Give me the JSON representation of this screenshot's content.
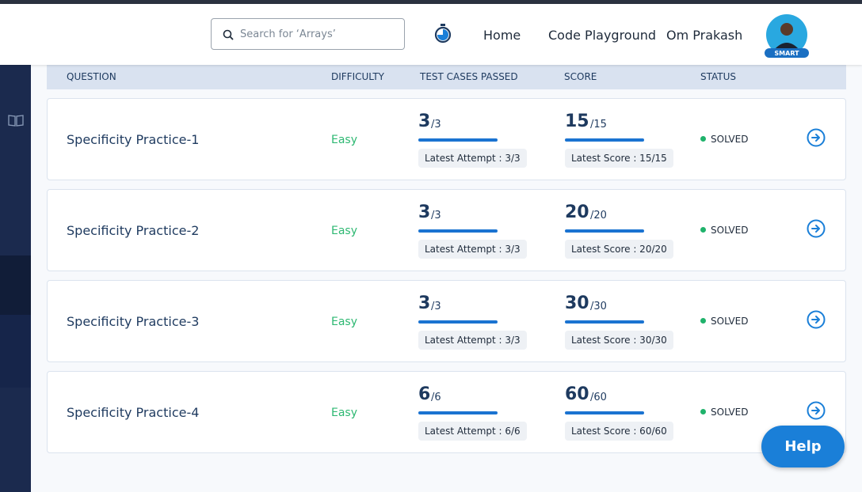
{
  "header": {
    "search_placeholder": "Search for ‘Arrays’",
    "nav": [
      "Home",
      "Code Playground"
    ],
    "user_name": "Om Prakash",
    "avatar_badge": "SMART"
  },
  "table": {
    "columns": [
      "QUESTION",
      "DIFFICULTY",
      "TEST CASES PASSED",
      "SCORE",
      "STATUS"
    ],
    "rows": [
      {
        "question": "Specificity Practice-1",
        "difficulty": "Easy",
        "tests_passed": "3",
        "tests_total": "/3",
        "attempt_label": "Latest Attempt : 3/3",
        "score": "15",
        "score_total": "/15",
        "score_label": "Latest Score : 15/15",
        "status": "SOLVED"
      },
      {
        "question": "Specificity Practice-2",
        "difficulty": "Easy",
        "tests_passed": "3",
        "tests_total": "/3",
        "attempt_label": "Latest Attempt : 3/3",
        "score": "20",
        "score_total": "/20",
        "score_label": "Latest Score : 20/20",
        "status": "SOLVED"
      },
      {
        "question": "Specificity Practice-3",
        "difficulty": "Easy",
        "tests_passed": "3",
        "tests_total": "/3",
        "attempt_label": "Latest Attempt : 3/3",
        "score": "30",
        "score_total": "/30",
        "score_label": "Latest Score : 30/30",
        "status": "SOLVED"
      },
      {
        "question": "Specificity Practice-4",
        "difficulty": "Easy",
        "tests_passed": "6",
        "tests_total": "/6",
        "attempt_label": "Latest Attempt : 6/6",
        "score": "60",
        "score_total": "/60",
        "score_label": "Latest Score : 60/60",
        "status": "SOLVED"
      }
    ]
  },
  "help_button": "Help"
}
